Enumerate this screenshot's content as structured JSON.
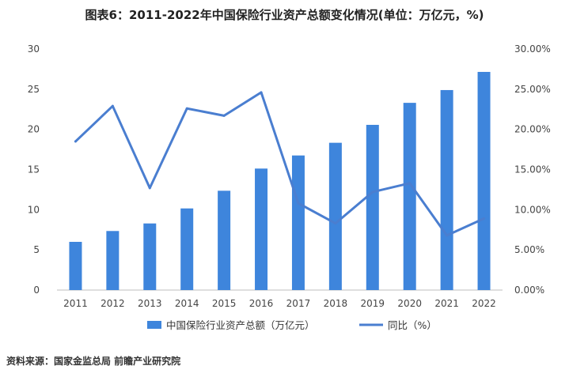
{
  "title": "图表6：2011-2022年中国保险行业资产总额变化情况(单位：万亿元，%)",
  "source": "资料来源：国家金监总局 前瞻产业研究院",
  "chart_data": {
    "type": "bar",
    "categories": [
      "2011",
      "2012",
      "2013",
      "2014",
      "2015",
      "2016",
      "2017",
      "2018",
      "2019",
      "2020",
      "2021",
      "2022"
    ],
    "series": [
      {
        "name": "中国保险行业资产总额（万亿元）",
        "type": "bar",
        "axis": "left",
        "color": "#3e85dc",
        "values": [
          6.0,
          7.35,
          8.29,
          10.16,
          12.36,
          15.12,
          16.75,
          18.33,
          20.56,
          23.3,
          24.89,
          27.15
        ]
      },
      {
        "name": "同比（%）",
        "type": "line",
        "axis": "right",
        "color": "#4a7ed0",
        "values": [
          18.5,
          22.9,
          12.7,
          22.6,
          21.7,
          24.6,
          10.8,
          8.3,
          12.2,
          13.3,
          6.8,
          8.9
        ]
      }
    ],
    "left_axis": {
      "ylim": [
        0,
        30
      ],
      "ticks": [
        "0",
        "5",
        "10",
        "15",
        "20",
        "25",
        "30"
      ]
    },
    "right_axis": {
      "ylim": [
        0,
        30
      ],
      "ticks": [
        "0.00%",
        "5.00%",
        "10.00%",
        "15.00%",
        "20.00%",
        "25.00%",
        "30.00%"
      ]
    },
    "grid": false,
    "legend": "bottom"
  }
}
